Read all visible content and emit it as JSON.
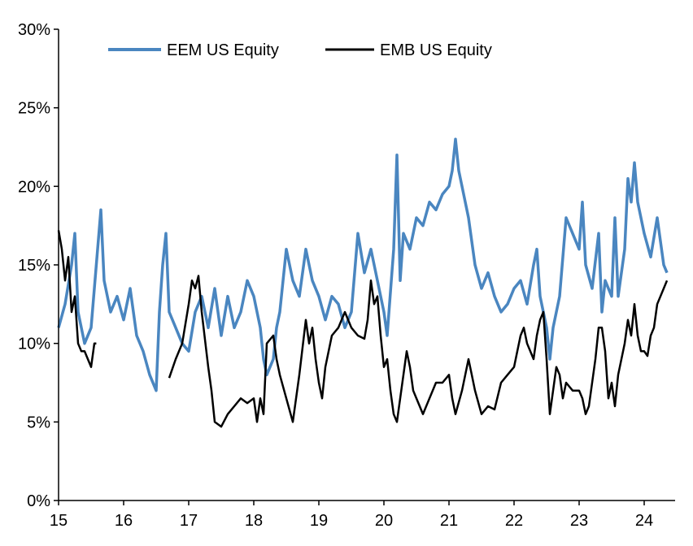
{
  "chart_data": {
    "type": "line",
    "title": "",
    "xlabel": "",
    "ylabel": "",
    "xlim": [
      2015,
      2024.4
    ],
    "ylim": [
      0,
      30
    ],
    "grid": false,
    "legend_placement": "top",
    "x_tick_labels": [
      "15",
      "16",
      "17",
      "18",
      "19",
      "20",
      "21",
      "22",
      "23",
      "24"
    ],
    "x_tick_values": [
      2015,
      2016,
      2017,
      2018,
      2019,
      2020,
      2021,
      2022,
      2023,
      2024
    ],
    "y_tick_labels": [
      "0%",
      "5%",
      "10%",
      "15%",
      "20%",
      "25%",
      "30%"
    ],
    "y_tick_values": [
      0,
      5,
      10,
      15,
      20,
      25,
      30
    ],
    "series": [
      {
        "name": "EEM US Equity",
        "color": "#4a86c0",
        "x": [
          2015.0,
          2015.1,
          2015.2,
          2015.25,
          2015.3,
          2015.4,
          2015.5,
          2015.6,
          2015.65,
          2015.7,
          2015.8,
          2015.9,
          2016.0,
          2016.1,
          2016.2,
          2016.3,
          2016.4,
          2016.5,
          2016.55,
          2016.6,
          2016.65,
          2016.7,
          2016.8,
          2016.9,
          2017.0,
          2017.1,
          2017.2,
          2017.3,
          2017.4,
          2017.5,
          2017.6,
          2017.7,
          2017.8,
          2017.9,
          2018.0,
          2018.1,
          2018.15,
          2018.2,
          2018.3,
          2018.35,
          2018.4,
          2018.5,
          2018.6,
          2018.7,
          2018.8,
          2018.9,
          2019.0,
          2019.1,
          2019.2,
          2019.3,
          2019.4,
          2019.5,
          2019.6,
          2019.7,
          2019.8,
          2019.9,
          2020.0,
          2020.05,
          2020.15,
          2020.2,
          2020.25,
          2020.3,
          2020.4,
          2020.5,
          2020.6,
          2020.7,
          2020.8,
          2020.9,
          2021.0,
          2021.05,
          2021.1,
          2021.15,
          2021.2,
          2021.3,
          2021.4,
          2021.5,
          2021.6,
          2021.7,
          2021.8,
          2021.9,
          2022.0,
          2022.1,
          2022.2,
          2022.3,
          2022.35,
          2022.4,
          2022.5,
          2022.55,
          2022.6,
          2022.7,
          2022.8,
          2022.9,
          2023.0,
          2023.05,
          2023.1,
          2023.2,
          2023.3,
          2023.35,
          2023.4,
          2023.5,
          2023.55,
          2023.6,
          2023.7,
          2023.75,
          2023.8,
          2023.85,
          2023.9,
          2024.0,
          2024.1,
          2024.2,
          2024.3,
          2024.35
        ],
        "values": [
          11,
          12.5,
          15,
          17,
          12,
          10,
          11,
          16,
          18.5,
          14,
          12,
          13,
          11.5,
          13.5,
          10.5,
          9.5,
          8,
          7,
          12,
          15,
          17,
          12,
          11,
          10,
          9.5,
          12,
          13,
          11,
          13.5,
          10.5,
          13,
          11,
          12,
          14,
          13,
          11,
          9,
          8,
          9,
          11,
          12,
          16,
          14,
          13,
          16,
          14,
          13,
          11.5,
          13,
          12.5,
          11,
          12,
          17,
          14.5,
          16,
          14,
          12,
          10.5,
          16,
          22,
          14,
          17,
          16,
          18,
          17.5,
          19,
          18.5,
          19.5,
          20,
          21,
          23,
          21,
          20,
          18,
          15,
          13.5,
          14.5,
          13,
          12,
          12.5,
          13.5,
          14,
          12.5,
          15,
          16,
          13,
          11,
          9,
          11,
          13,
          18,
          17,
          16,
          19,
          15,
          13.5,
          17,
          12,
          14,
          13,
          18,
          13,
          16,
          20.5,
          19,
          21.5,
          19,
          17,
          15.5,
          18,
          15,
          14.5
        ]
      },
      {
        "name": "EMB US Equity",
        "color": "#000000",
        "segments": [
          {
            "x": [
              2015.0,
              2015.05,
              2015.1,
              2015.15,
              2015.2,
              2015.25,
              2015.3,
              2015.35,
              2015.4,
              2015.45,
              2015.5,
              2015.55,
              2015.58
            ],
            "values": [
              17.2,
              16,
              14,
              15.5,
              12,
              13,
              10,
              9.5,
              9.5,
              9,
              8.5,
              10,
              10
            ]
          },
          {
            "x": [
              2016.7,
              2016.8,
              2016.9,
              2017.0,
              2017.05,
              2017.1,
              2017.15,
              2017.2,
              2017.3,
              2017.35,
              2017.4,
              2017.5,
              2017.6,
              2017.7,
              2017.8,
              2017.9,
              2018.0,
              2018.05,
              2018.1,
              2018.15,
              2018.2,
              2018.3,
              2018.35,
              2018.4,
              2018.5,
              2018.6,
              2018.7,
              2018.8,
              2018.85,
              2018.9,
              2018.95,
              2019.0,
              2019.05,
              2019.1,
              2019.2,
              2019.3,
              2019.4,
              2019.5,
              2019.6,
              2019.7,
              2019.75,
              2019.8,
              2019.85,
              2019.9,
              2019.95,
              2020.0,
              2020.05,
              2020.1,
              2020.15,
              2020.2,
              2020.25,
              2020.3,
              2020.35,
              2020.4,
              2020.45,
              2020.55,
              2020.6,
              2020.7,
              2020.8,
              2020.9,
              2021.0,
              2021.05,
              2021.1,
              2021.2,
              2021.3,
              2021.35,
              2021.4,
              2021.5,
              2021.6,
              2021.7,
              2021.8,
              2021.9,
              2022.0,
              2022.05,
              2022.1,
              2022.15,
              2022.2,
              2022.3,
              2022.35,
              2022.4,
              2022.45,
              2022.5,
              2022.55,
              2022.6,
              2022.65,
              2022.7,
              2022.75,
              2022.8,
              2022.9,
              2023.0,
              2023.05,
              2023.1,
              2023.15,
              2023.2,
              2023.25,
              2023.3,
              2023.35,
              2023.4,
              2023.45,
              2023.5,
              2023.55,
              2023.6,
              2023.65,
              2023.7,
              2023.75,
              2023.8,
              2023.85,
              2023.9,
              2023.95,
              2024.0,
              2024.05,
              2024.1,
              2024.15,
              2024.2,
              2024.25,
              2024.3,
              2024.35
            ],
            "values": [
              7.8,
              9,
              10,
              12.5,
              14,
              13.5,
              14.3,
              12,
              8.5,
              7,
              5,
              4.7,
              5.5,
              6,
              6.5,
              6.2,
              6.5,
              5,
              6.5,
              5.5,
              10,
              10.5,
              9,
              8,
              6.5,
              5,
              8,
              11.5,
              10,
              11,
              9,
              7.5,
              6.5,
              8.5,
              10.5,
              11,
              12,
              11,
              10.5,
              10.3,
              11.5,
              14,
              12.5,
              13,
              10.5,
              8.5,
              9,
              7,
              5.5,
              5,
              6.5,
              8,
              9.5,
              8.5,
              7,
              6,
              5.5,
              6.5,
              7.5,
              7.5,
              8,
              6.5,
              5.5,
              7,
              9,
              8,
              7,
              5.5,
              6,
              5.8,
              7.5,
              8,
              8.5,
              9.5,
              10.5,
              11,
              10,
              9,
              10.5,
              11.5,
              12,
              9,
              5.5,
              7,
              8.5,
              8,
              6.5,
              7.5,
              7,
              7,
              6.5,
              5.5,
              6,
              7.5,
              9,
              11,
              11,
              9.5,
              6.5,
              7.5,
              6,
              8,
              9,
              10,
              11.5,
              10.5,
              12.5,
              10.5,
              9.5,
              9.5,
              9.2,
              10.5,
              11,
              12.5,
              13,
              13.5,
              14
            ]
          }
        ]
      }
    ]
  }
}
